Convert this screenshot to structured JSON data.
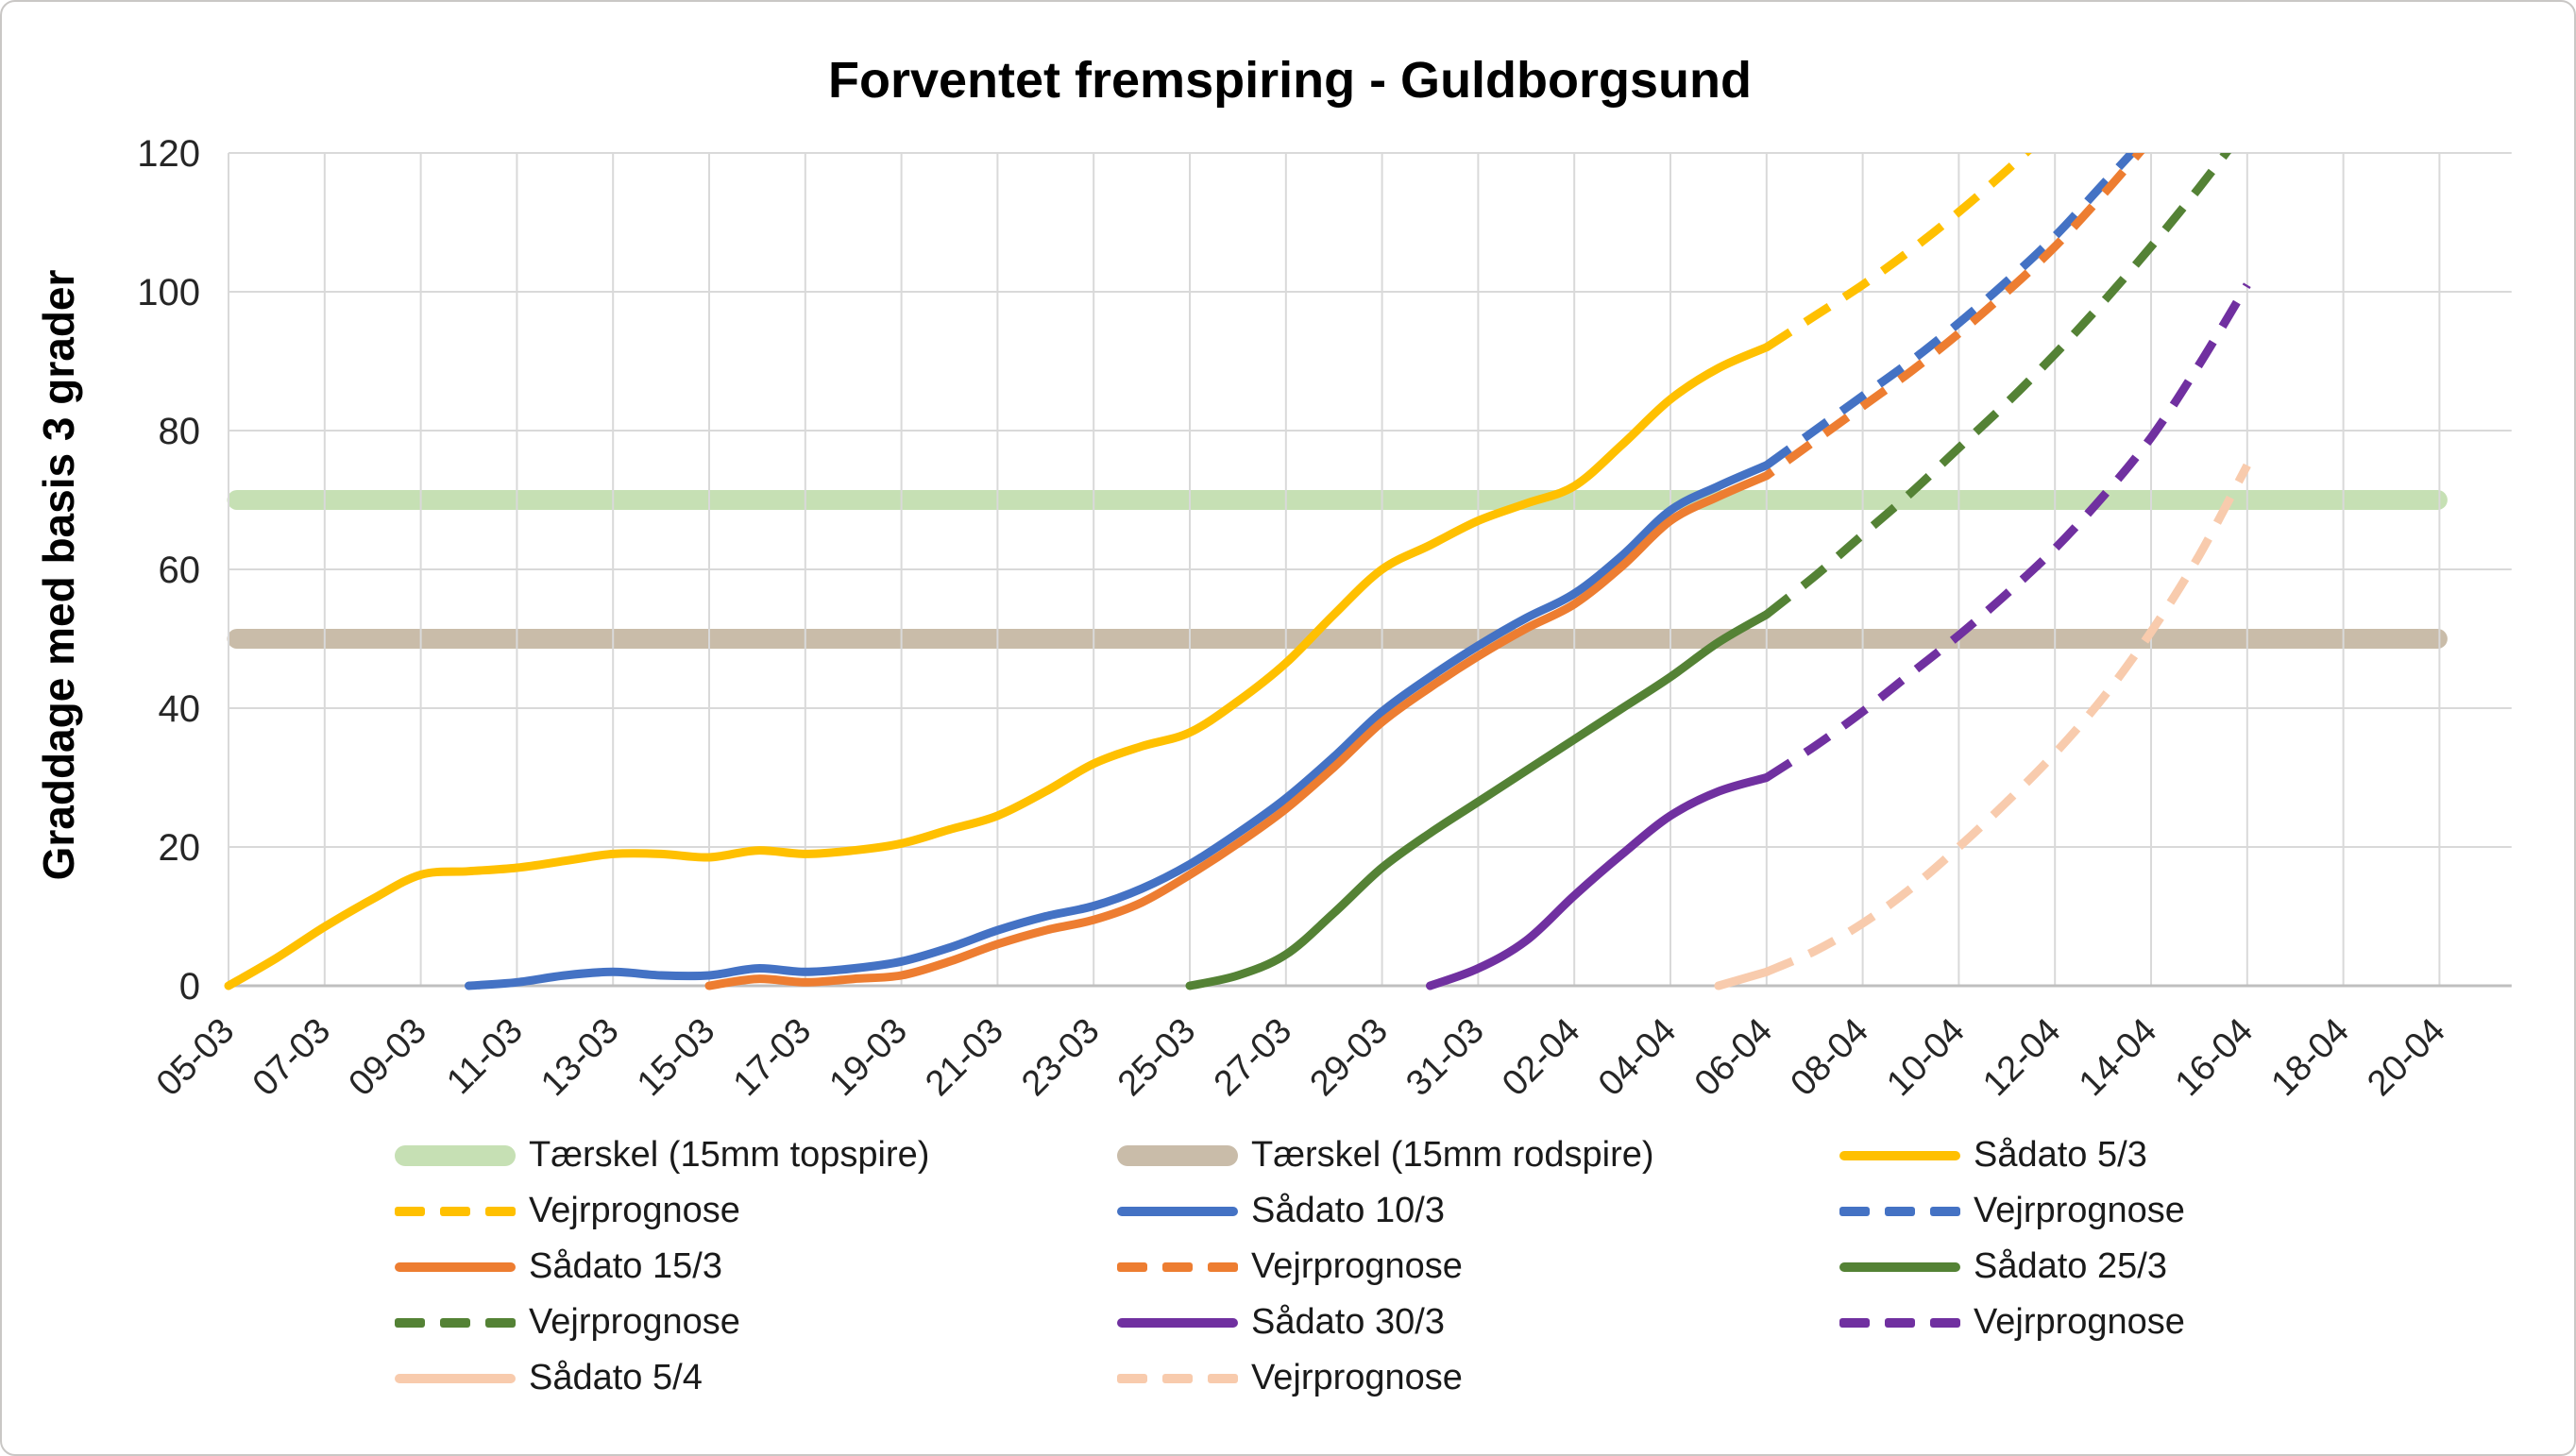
{
  "title": "Forventet fremspiring - Guldborgsund",
  "y_axis_label": "Graddage med basis 3 grader",
  "colors": {
    "yellow": "#FFC000",
    "blue": "#4472C4",
    "orange": "#ED7D31",
    "green": "#548235",
    "purple": "#7030A0",
    "peach": "#F8CBAD",
    "band_green": "#C6E0B4",
    "band_brown": "#C9BCA9",
    "gridline": "#D9D9D9",
    "axis_line": "#BFBFBF",
    "text": "#262626"
  },
  "chart_data": {
    "type": "line",
    "title": "Forventet fremspiring - Guldborgsund",
    "xlabel": "",
    "ylabel": "Graddage med basis 3 grader",
    "ylim": [
      0,
      120
    ],
    "y_ticks": [
      0,
      20,
      40,
      60,
      80,
      100,
      120
    ],
    "grid": true,
    "legend_position": "bottom",
    "x_unit": "date (day index 0 = 05-03, one point per day)",
    "x_tick_labels": [
      "05-03",
      "07-03",
      "09-03",
      "11-03",
      "13-03",
      "15-03",
      "17-03",
      "19-03",
      "21-03",
      "23-03",
      "25-03",
      "27-03",
      "29-03",
      "31-03",
      "02-04",
      "04-04",
      "06-04",
      "08-04",
      "10-04",
      "12-04",
      "14-04",
      "16-04",
      "18-04",
      "20-04"
    ],
    "x_tick_days": [
      0,
      2,
      4,
      6,
      8,
      10,
      12,
      14,
      16,
      18,
      20,
      22,
      24,
      26,
      28,
      30,
      32,
      34,
      36,
      38,
      40,
      42,
      44,
      46
    ],
    "x_domain_days": [
      0,
      47.5
    ],
    "thresholds": [
      {
        "name": "Tærskel (15mm topspire)",
        "value": 70,
        "color_key": "band_green",
        "start_day": 0,
        "end_day": 46
      },
      {
        "name": "Tærskel (15mm rodspire)",
        "value": 50,
        "color_key": "band_brown",
        "start_day": 0,
        "end_day": 46
      }
    ],
    "series": [
      {
        "name": "Sådato 5/3",
        "color_key": "yellow",
        "dashed": false,
        "start_day": 0,
        "values": [
          0,
          4,
          8.5,
          12.5,
          16,
          16.5,
          17,
          18,
          19,
          19,
          18.5,
          19.5,
          19,
          19.5,
          20.5,
          22.5,
          24.5,
          28,
          32,
          34.5,
          36.5,
          41,
          46.5,
          53.5,
          60,
          63.5,
          67,
          69.5,
          72,
          78,
          84.5,
          89,
          92
        ]
      },
      {
        "name": "Vejrprognose",
        "color_key": "yellow",
        "dashed": true,
        "start_day": 32,
        "values": [
          92,
          96.5,
          101,
          106,
          111.5,
          117.5,
          124
        ]
      },
      {
        "name": "Sådato 10/3",
        "color_key": "blue",
        "dashed": false,
        "start_day": 5,
        "values": [
          0,
          0.5,
          1.5,
          2,
          1.5,
          1.5,
          2.5,
          2,
          2.5,
          3.5,
          5.5,
          8,
          10,
          11.5,
          14,
          17.5,
          22,
          27,
          33,
          39.5,
          44.5,
          49,
          53,
          56.5,
          62,
          68.5,
          72,
          75
        ]
      },
      {
        "name": "Vejrprognose",
        "color_key": "blue",
        "dashed": true,
        "start_day": 32,
        "values": [
          75,
          80,
          85,
          90,
          95.5,
          101.5,
          108,
          115.5,
          123
        ]
      },
      {
        "name": "Sådato 15/3",
        "color_key": "orange",
        "dashed": false,
        "start_day": 10,
        "values": [
          0,
          1,
          0.5,
          1,
          1.5,
          3.5,
          6,
          8,
          9.5,
          12,
          16,
          20.5,
          25.5,
          31.5,
          38,
          43,
          47.5,
          51.5,
          55,
          60.5,
          67,
          70.5,
          73.5
        ]
      },
      {
        "name": "Vejrprognose",
        "color_key": "orange",
        "dashed": true,
        "start_day": 32,
        "values": [
          73.5,
          78.5,
          83.5,
          88.5,
          94,
          100,
          106.5,
          114,
          122
        ]
      },
      {
        "name": "Sådato 25/3",
        "color_key": "green",
        "dashed": false,
        "start_day": 20,
        "values": [
          0,
          1.5,
          4.5,
          10.5,
          17,
          22,
          26.5,
          31,
          35.5,
          40,
          44.5,
          49.5,
          53.5
        ]
      },
      {
        "name": "Vejrprognose",
        "color_key": "green",
        "dashed": true,
        "start_day": 32,
        "values": [
          53.5,
          59,
          65,
          71,
          77.5,
          84,
          91,
          98.5,
          106.5,
          115,
          124
        ]
      },
      {
        "name": "Sådato 30/3",
        "color_key": "purple",
        "dashed": false,
        "start_day": 25,
        "values": [
          0,
          2.5,
          6.5,
          13,
          19,
          24.5,
          28,
          30
        ]
      },
      {
        "name": "Vejrprognose",
        "color_key": "purple",
        "dashed": true,
        "start_day": 32,
        "values": [
          30,
          34.5,
          39.5,
          45,
          50.5,
          56.5,
          63,
          70.5,
          79,
          89.5,
          101
        ]
      },
      {
        "name": "Sådato 5/4",
        "color_key": "peach",
        "dashed": false,
        "start_day": 31,
        "values": [
          0,
          2
        ]
      },
      {
        "name": "Vejrprognose",
        "color_key": "peach",
        "dashed": true,
        "start_day": 32,
        "values": [
          2,
          5,
          9,
          14,
          20,
          26.5,
          33.5,
          41.5,
          51,
          62,
          75
        ]
      }
    ],
    "legend": [
      {
        "label": "Tærskel (15mm topspire)",
        "swatch": "band",
        "color_key": "band_green"
      },
      {
        "label": "Tærskel (15mm rodspire)",
        "swatch": "band",
        "color_key": "band_brown"
      },
      {
        "label": "Sådato 5/3",
        "swatch": "line",
        "color_key": "yellow"
      },
      {
        "label": "Vejrprognose",
        "swatch": "dash",
        "color_key": "yellow"
      },
      {
        "label": "Sådato 10/3",
        "swatch": "line",
        "color_key": "blue"
      },
      {
        "label": "Vejrprognose",
        "swatch": "dash",
        "color_key": "blue"
      },
      {
        "label": "Sådato 15/3",
        "swatch": "line",
        "color_key": "orange"
      },
      {
        "label": "Vejrprognose",
        "swatch": "dash",
        "color_key": "orange"
      },
      {
        "label": "Sådato 25/3",
        "swatch": "line",
        "color_key": "green"
      },
      {
        "label": "Vejrprognose",
        "swatch": "dash",
        "color_key": "green"
      },
      {
        "label": "Sådato 30/3",
        "swatch": "line",
        "color_key": "purple"
      },
      {
        "label": "Vejrprognose",
        "swatch": "dash",
        "color_key": "purple"
      },
      {
        "label": "Sådato 5/4",
        "swatch": "line",
        "color_key": "peach"
      },
      {
        "label": "Vejrprognose",
        "swatch": "dash",
        "color_key": "peach"
      }
    ]
  }
}
